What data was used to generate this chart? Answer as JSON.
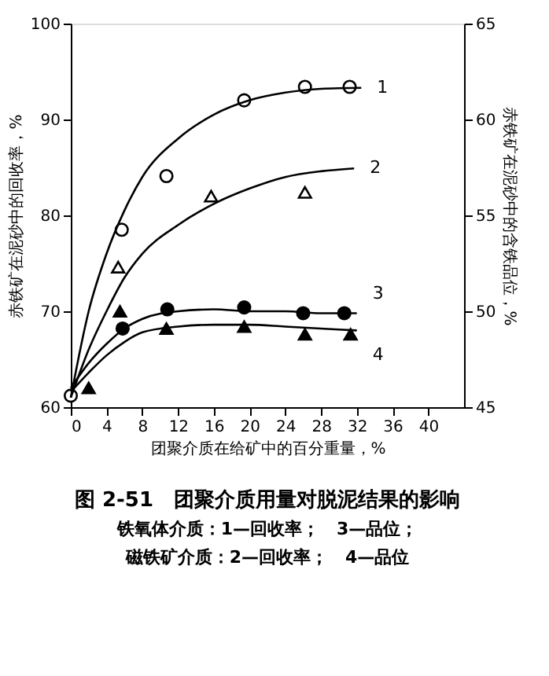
{
  "chart_data": {
    "type": "scatter",
    "title": "图 2-51　团聚介质用量对脱泥结果的影响",
    "xlabel": "团聚介质在给矿中的百分重量，%",
    "ylabel": "赤铁矿在泥砂中的回收率，%",
    "y2label": "赤铁矿在泥砂中的含铁品位，%",
    "annotations": [
      "铁氧体介质：1—回收率；　3—品位；",
      "磁铁矿介质：2—回收率；　4—品位"
    ],
    "xlim": [
      0,
      44
    ],
    "xticks": [
      0,
      4,
      8,
      12,
      16,
      20,
      24,
      28,
      32,
      36,
      40
    ],
    "ylim": [
      60,
      100
    ],
    "yticks": [
      60,
      70,
      80,
      90,
      100
    ],
    "y2lim": [
      45,
      65
    ],
    "y2ticks": [
      45,
      50,
      55,
      60,
      65
    ],
    "grid": false,
    "series": [
      {
        "marker": "circle",
        "color": "#ffffff",
        "x": [
          0,
          5.7,
          10.7,
          19.4,
          26.2,
          31.2
        ],
        "values": [
          61.2,
          78.5,
          84.1,
          92,
          93.4,
          93.4
        ]
      },
      {
        "marker": "triangle",
        "color": "#ffffff",
        "x": [
          5.3,
          15.7,
          26.2
        ],
        "values": [
          74.6,
          82,
          82.4
        ]
      },
      {
        "marker": "circle",
        "axis": "y2",
        "color": "#000000",
        "x": [
          5.8,
          10.8,
          19.4,
          26.0,
          30.6
        ],
        "values": [
          49.1,
          50.1,
          50.2,
          49.9,
          49.9
        ]
      },
      {
        "marker": "triangle",
        "axis": "y2",
        "color": "#000000",
        "x": [
          2,
          5.5,
          10.7,
          19.4,
          26.2,
          31.3
        ],
        "values": [
          46,
          50,
          49.1,
          49.2,
          48.8,
          48.8
        ]
      },
      {
        "type": "line",
        "name": "1",
        "color": "#000000",
        "x": [
          0,
          2,
          4,
          6,
          8,
          12,
          16,
          20,
          24,
          28,
          32.5
        ],
        "values": [
          61,
          70,
          76,
          80.5,
          84,
          88,
          90.5,
          92,
          92.8,
          93.2,
          93.3
        ]
      },
      {
        "type": "line",
        "name": "2",
        "color": "#000000",
        "x": [
          0,
          2,
          4,
          6,
          8,
          12,
          16,
          20,
          24,
          28,
          31.7
        ],
        "values": [
          61,
          66,
          70,
          73.5,
          76,
          79,
          81.2,
          82.8,
          84,
          84.6,
          84.9
        ]
      },
      {
        "type": "line",
        "name": "3",
        "axis": "y2",
        "color": "#000000",
        "x": [
          0,
          2,
          4,
          6,
          8,
          12,
          16,
          20,
          24,
          28,
          32
        ],
        "values": [
          46,
          47.3,
          48.3,
          49.1,
          49.6,
          50,
          50.1,
          50,
          50,
          49.9,
          49.9
        ]
      },
      {
        "type": "line",
        "name": "4",
        "axis": "y2",
        "color": "#000000",
        "x": [
          0,
          2,
          4,
          6,
          8,
          12,
          16,
          20,
          24,
          28,
          32
        ],
        "values": [
          45.8,
          46.8,
          47.7,
          48.4,
          48.9,
          49.2,
          49.3,
          49.3,
          49.2,
          49.1,
          49.0
        ]
      }
    ]
  }
}
